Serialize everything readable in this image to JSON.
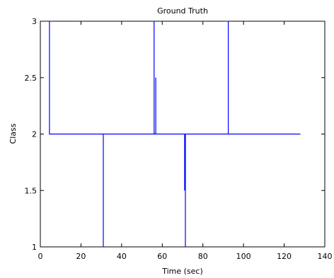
{
  "chart_data": {
    "type": "line",
    "title": "Ground Truth",
    "xlabel": "Time (sec)",
    "ylabel": "Class",
    "xlim": [
      0,
      140
    ],
    "ylim": [
      1,
      3
    ],
    "x_ticks": [
      0,
      20,
      40,
      60,
      80,
      100,
      120,
      140
    ],
    "y_ticks": [
      1,
      1.5,
      2,
      2.5,
      3
    ],
    "grid": false,
    "series": [
      {
        "color": "#0000ff",
        "points": [
          [
            4.5,
            3
          ],
          [
            4.5,
            2
          ],
          [
            31,
            2
          ],
          [
            31,
            1
          ],
          [
            31,
            2
          ],
          [
            56,
            2
          ],
          [
            56,
            3
          ],
          [
            56,
            2
          ],
          [
            56.8,
            2
          ],
          [
            56.8,
            2.5
          ],
          [
            56.8,
            2
          ],
          [
            71,
            2
          ],
          [
            71,
            1.5
          ],
          [
            71,
            2
          ],
          [
            71.4,
            2
          ],
          [
            71.4,
            1
          ],
          [
            71.4,
            2
          ],
          [
            92.5,
            2
          ],
          [
            92.5,
            3
          ],
          [
            92.5,
            2
          ],
          [
            128,
            2
          ]
        ]
      }
    ]
  }
}
